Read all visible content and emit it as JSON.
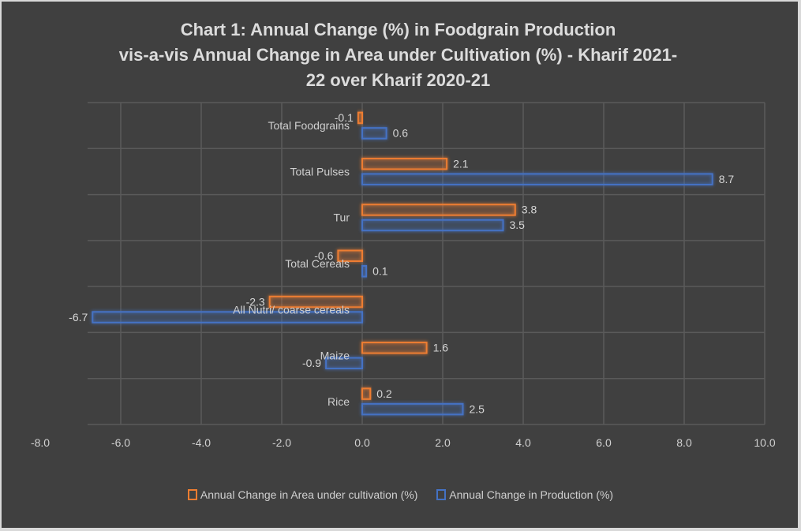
{
  "chart_data": {
    "type": "bar",
    "orientation": "horizontal",
    "title_lines": [
      "Chart 1: Annual Change (%) in Foodgrain Production",
      "vis-a-vis Annual Change in Area under Cultivation (%) - Kharif 2021-",
      "22 over Kharif 2020-21"
    ],
    "categories": [
      "Total Foodgrains",
      "Total Pulses",
      "Tur",
      "Total Cereals",
      "All Nutri/ coarse cereals",
      "Maize",
      "Rice"
    ],
    "series": [
      {
        "name": "Annual Change in Area under  cultivation (%)",
        "color": "#ed7d31",
        "values": [
          -0.1,
          2.1,
          3.8,
          -0.6,
          -2.3,
          1.6,
          0.2
        ],
        "labels": [
          "-0.1",
          "2.1",
          "3.8",
          "-0.6",
          "-2.3",
          "1.6",
          "0.2"
        ]
      },
      {
        "name": "Annual Change in Production (%)",
        "color": "#4472c4",
        "values": [
          0.6,
          8.7,
          3.5,
          0.1,
          -6.7,
          -0.9,
          2.5
        ],
        "labels": [
          "0.6",
          "8.7",
          "3.5",
          "0.1",
          "-6.7",
          "-0.9",
          "2.5"
        ]
      }
    ],
    "xlim": [
      -8,
      10
    ],
    "xticks": [
      -8,
      -6,
      -4,
      -2,
      0,
      2,
      4,
      6,
      8,
      10
    ],
    "xtick_labels": [
      "-8.0",
      "-6.0",
      "-4.0",
      "-2.0",
      "0.0",
      "2.0",
      "4.0",
      "6.0",
      "8.0",
      "10.0"
    ],
    "xlabel": "",
    "ylabel": "",
    "grid": true,
    "legend_position": "bottom",
    "background": "#404040"
  }
}
